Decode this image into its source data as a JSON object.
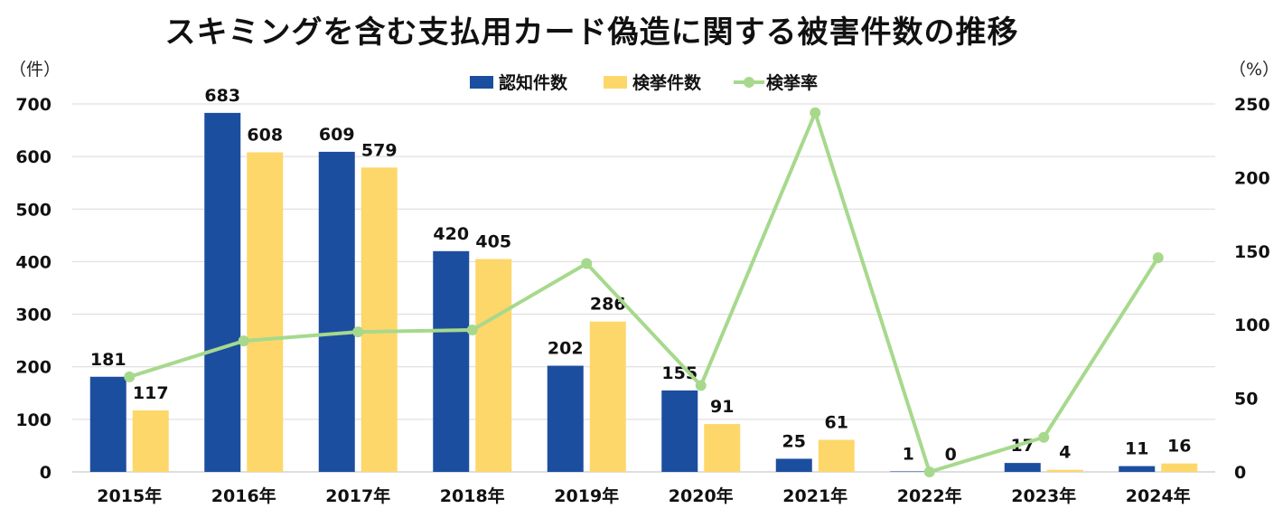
{
  "chart_data": {
    "type": "bar",
    "title": "スキミングを含む支払用カード偽造に関する被害件数の推移",
    "left_axis_unit": "（件）",
    "right_axis_unit": "（%）",
    "categories": [
      "2015年",
      "2016年",
      "2017年",
      "2018年",
      "2019年",
      "2020年",
      "2021年",
      "2022年",
      "2023年",
      "2024年"
    ],
    "series": [
      {
        "name": "認知件数",
        "type": "bar",
        "axis": "left",
        "color": "#1c4ea0",
        "values": [
          181,
          683,
          609,
          420,
          202,
          155,
          25,
          1,
          17,
          11
        ]
      },
      {
        "name": "検挙件数",
        "type": "bar",
        "axis": "left",
        "color": "#fdd76a",
        "values": [
          117,
          608,
          579,
          405,
          286,
          91,
          61,
          0,
          4,
          16
        ]
      },
      {
        "name": "検挙率",
        "type": "line",
        "axis": "right",
        "color": "#a6d98c",
        "values": [
          64.6,
          89.0,
          95.1,
          96.4,
          141.6,
          58.7,
          244.0,
          0,
          23.5,
          145.5
        ]
      }
    ],
    "left_axis": {
      "min": 0,
      "max": 700,
      "ticks": [
        "0",
        "100",
        "200",
        "300",
        "400",
        "500",
        "600",
        "700"
      ]
    },
    "right_axis": {
      "min": 0,
      "max": 250,
      "ticks": [
        "0",
        "50",
        "100",
        "150",
        "200",
        "250"
      ]
    },
    "grid": true,
    "legend_position": "top-center",
    "data_labels": true
  }
}
